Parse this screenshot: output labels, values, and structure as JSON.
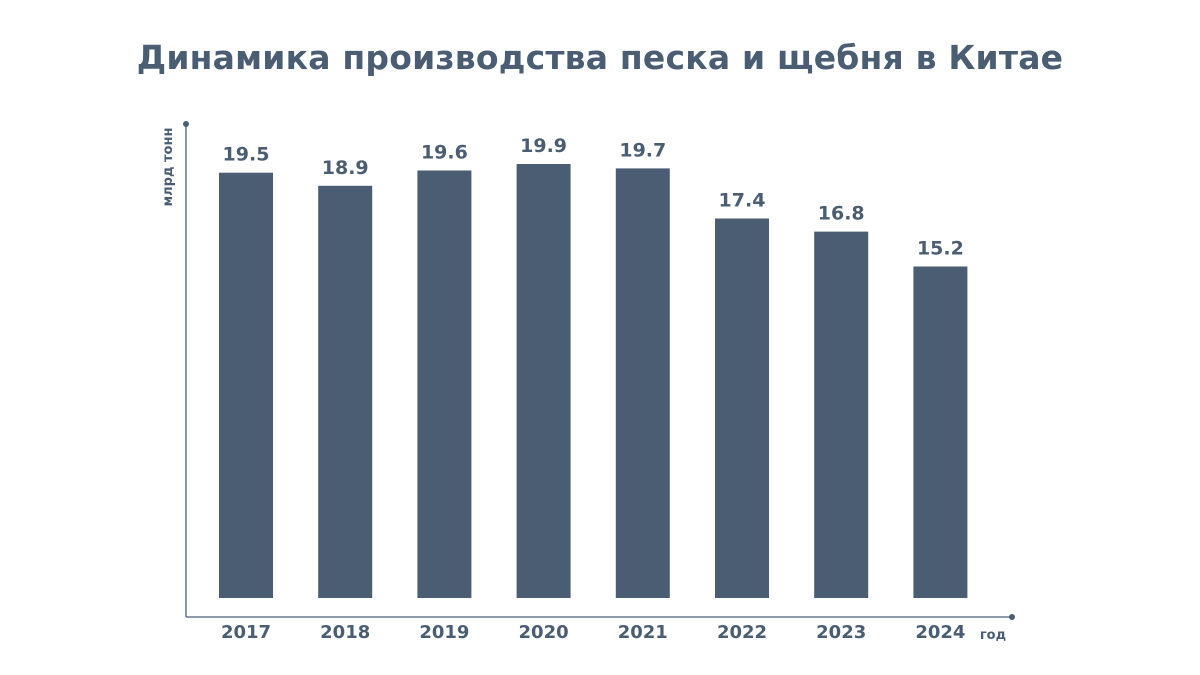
{
  "chart_data": {
    "type": "bar",
    "title": "Динамика производства песка и щебня в Китае",
    "xlabel": "год",
    "ylabel": "млрд тонн",
    "categories": [
      "2017",
      "2018",
      "2019",
      "2020",
      "2021",
      "2022",
      "2023",
      "2024"
    ],
    "values": [
      19.5,
      18.9,
      19.6,
      19.9,
      19.7,
      17.4,
      16.8,
      15.2
    ],
    "value_labels": [
      "19.5",
      "18.9",
      "19.6",
      "19.9",
      "19.7",
      "17.4",
      "16.8",
      "15.2"
    ],
    "ylim": [
      0,
      19.9
    ],
    "grid": false,
    "legend": "none",
    "colors": {
      "bar": "#4a5d73",
      "text": "#4a5d73",
      "axis": "#4a5d73"
    }
  }
}
